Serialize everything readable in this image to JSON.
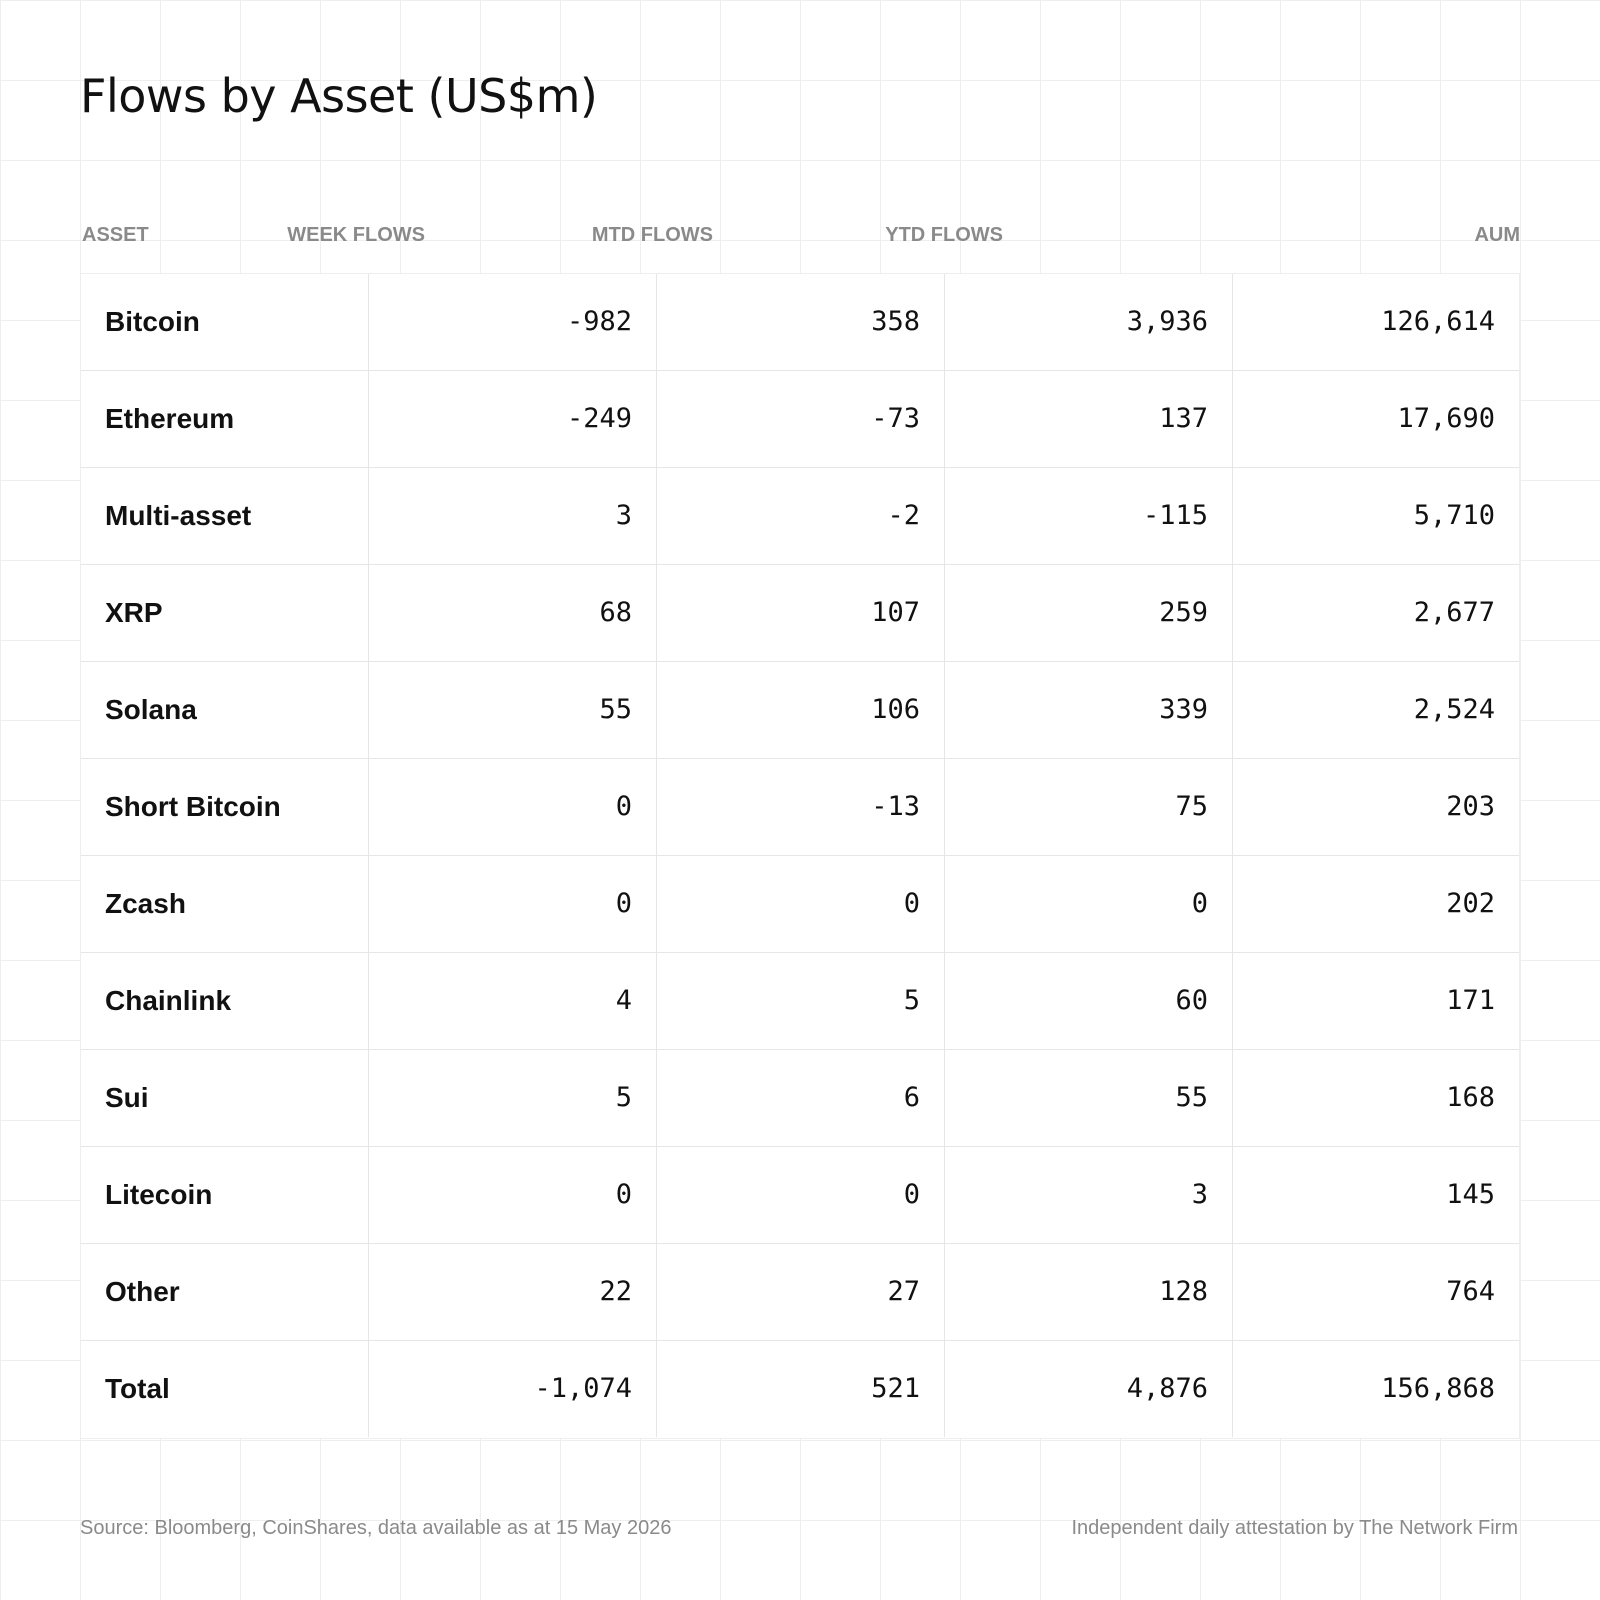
{
  "title": "Flows by Asset (US$m)",
  "columns": [
    "ASSET",
    "WEEK FLOWS",
    "MTD FLOWS",
    "YTD FLOWS",
    "AUM"
  ],
  "rows": [
    {
      "asset": "Bitcoin",
      "week": "-982",
      "mtd": "358",
      "ytd": "3,936",
      "aum": "126,614"
    },
    {
      "asset": "Ethereum",
      "week": "-249",
      "mtd": "-73",
      "ytd": "137",
      "aum": "17,690"
    },
    {
      "asset": "Multi-asset",
      "week": "3",
      "mtd": "-2",
      "ytd": "-115",
      "aum": "5,710"
    },
    {
      "asset": "XRP",
      "week": "68",
      "mtd": "107",
      "ytd": "259",
      "aum": "2,677"
    },
    {
      "asset": "Solana",
      "week": "55",
      "mtd": "106",
      "ytd": "339",
      "aum": "2,524"
    },
    {
      "asset": "Short Bitcoin",
      "week": "0",
      "mtd": "-13",
      "ytd": "75",
      "aum": "203"
    },
    {
      "asset": "Zcash",
      "week": "0",
      "mtd": "0",
      "ytd": "0",
      "aum": "202"
    },
    {
      "asset": "Chainlink",
      "week": "4",
      "mtd": "5",
      "ytd": "60",
      "aum": "171"
    },
    {
      "asset": "Sui",
      "week": "5",
      "mtd": "6",
      "ytd": "55",
      "aum": "168"
    },
    {
      "asset": "Litecoin",
      "week": "0",
      "mtd": "0",
      "ytd": "3",
      "aum": "145"
    },
    {
      "asset": "Other",
      "week": "22",
      "mtd": "27",
      "ytd": "128",
      "aum": "764"
    },
    {
      "asset": "Total",
      "week": "-1,074",
      "mtd": "521",
      "ytd": "4,876",
      "aum": "156,868"
    }
  ],
  "footer": {
    "source": "Source: Bloomberg, CoinShares, data available as at 15 May 2026",
    "attestation": "Independent daily attestation by The Network Firm"
  },
  "colors": {
    "background": "#ffffff",
    "grid": "#eeeeee",
    "text": "#111111",
    "muted": "#8a8a8a"
  }
}
